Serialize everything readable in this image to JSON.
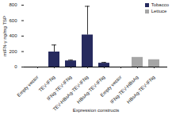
{
  "chart_data": {
    "type": "bar",
    "categories": [
      "Empty vector",
      "TEV-IFNg",
      "IFNg-TEV-IFNg",
      "TEV-HBsAg-TEV-IFNg",
      "HBsAg-TEV-IFNg",
      "Empty vector",
      "IFNg-TEV-HBsAg",
      "HBsAg-TEV-IFNg"
    ],
    "series": [
      {
        "name": "Tobacco",
        "color": "#262a5e",
        "values": [
          0,
          195,
          80,
          415,
          50,
          null,
          null,
          null
        ],
        "errors": [
          0,
          90,
          10,
          370,
          10,
          null,
          null,
          null
        ]
      },
      {
        "name": "Lettuce",
        "color": "#a6a6a6",
        "values": [
          null,
          null,
          null,
          null,
          null,
          0,
          125,
          95
        ],
        "errors": [
          null,
          null,
          null,
          null,
          null,
          0,
          0,
          0
        ]
      }
    ],
    "x_label": "Expression constructs",
    "y_label": "mIFN-γ ng/mg TSP",
    "ylim": [
      0,
      800
    ],
    "yticks": [
      0,
      200,
      400,
      600,
      800
    ],
    "grid": false,
    "legend": "top-right"
  }
}
